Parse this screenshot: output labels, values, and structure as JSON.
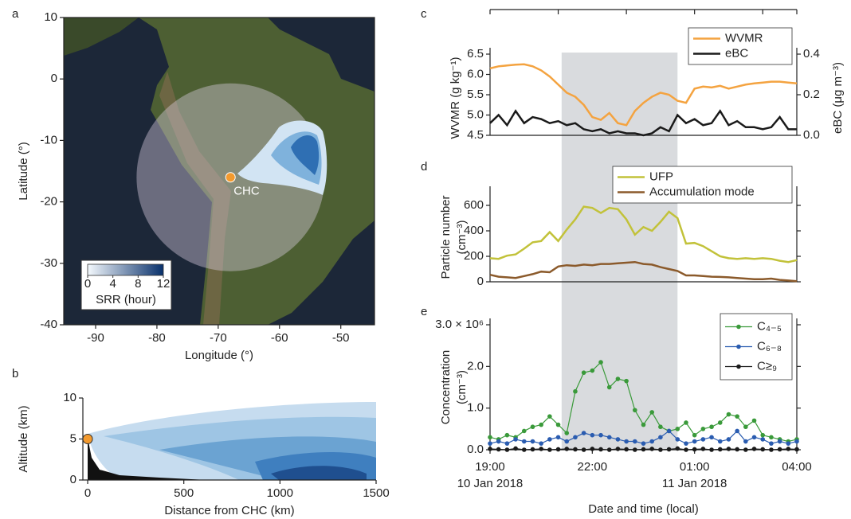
{
  "chart_data": [
    {
      "type": "map",
      "panel": "a",
      "xlabel": "Longitude (°)",
      "ylabel": "Latitude (°)",
      "xlim": [
        -95.2,
        -44.5
      ],
      "ylim": [
        -40,
        10
      ],
      "xticks": [
        -90,
        -80,
        -70,
        -60,
        -50
      ],
      "yticks": [
        10,
        0,
        -10,
        -20,
        -30,
        -40
      ],
      "site": {
        "name": "CHC",
        "x": -68,
        "y": -16,
        "color": "#f39a2e"
      },
      "colorbar": {
        "label": "SRR (hour)",
        "ticks": [
          0,
          4,
          8,
          12
        ],
        "lim": [
          0,
          12
        ],
        "colors": [
          "#f4f9fd",
          "#08306b"
        ]
      }
    },
    {
      "type": "contour",
      "panel": "b",
      "xlabel": "Distance from CHC (km)",
      "ylabel": "Altitude (km)",
      "xlim": [
        -25,
        1500
      ],
      "ylim": [
        0,
        10
      ],
      "xticks": [
        0,
        500,
        1000,
        1500
      ],
      "yticks": [
        0,
        5,
        10
      ],
      "site": {
        "x": 0,
        "y": 5,
        "color": "#f39a2e"
      }
    },
    {
      "type": "line",
      "panel": "c",
      "ylabel": "WVMR (g kg⁻¹)",
      "y2label": "eBC (μg m⁻³)",
      "xlim": [
        19,
        28
      ],
      "top_xticks": [
        19,
        21,
        23,
        25,
        27,
        28
      ],
      "ylim": [
        4.5,
        6.5
      ],
      "yticks": [
        4.5,
        {
          "value": 5,
          "label": "5.0"
        },
        5.5,
        {
          "value": 6,
          "label": "6.0"
        },
        6.5
      ],
      "y2lim": [
        0,
        0.4
      ],
      "y2ticks": [
        {
          "value": 0,
          "label": "0.0"
        },
        0.2,
        0.4
      ],
      "legend": "top-right",
      "x": [
        19,
        19.25,
        19.5,
        19.75,
        20,
        20.25,
        20.5,
        20.75,
        21,
        21.25,
        21.5,
        21.75,
        22,
        22.25,
        22.5,
        22.75,
        23,
        23.25,
        23.5,
        23.75,
        24,
        24.25,
        24.5,
        24.75,
        25,
        25.25,
        25.5,
        25.75,
        26,
        26.25,
        26.5,
        26.75,
        27,
        27.25,
        27.5,
        27.75,
        28
      ],
      "series": [
        {
          "name": "WVMR",
          "color": "#f4a340",
          "values": [
            6.15,
            6.2,
            6.22,
            6.24,
            6.25,
            6.2,
            6.1,
            5.95,
            5.75,
            5.55,
            5.45,
            5.25,
            4.95,
            4.88,
            5.05,
            4.8,
            4.75,
            5.1,
            5.3,
            5.45,
            5.55,
            5.5,
            5.35,
            5.3,
            5.65,
            5.7,
            5.68,
            5.72,
            5.65,
            5.7,
            5.75,
            5.78,
            5.8,
            5.82,
            5.82,
            5.8,
            5.78
          ]
        },
        {
          "name": "eBC",
          "color": "#1a1a1a",
          "axis": "y2",
          "values": [
            0.06,
            0.1,
            0.05,
            0.12,
            0.06,
            0.09,
            0.08,
            0.06,
            0.07,
            0.05,
            0.06,
            0.03,
            0.02,
            0.03,
            0.01,
            0.02,
            0.01,
            0.01,
            0,
            0.01,
            0.04,
            0.02,
            0.1,
            0.06,
            0.08,
            0.05,
            0.06,
            0.12,
            0.05,
            0.07,
            0.04,
            0.04,
            0.03,
            0.04,
            0.09,
            0.03,
            0.03
          ]
        }
      ]
    },
    {
      "type": "line",
      "panel": "d",
      "ylabel": [
        "Particle number",
        "(cm⁻³)"
      ],
      "xlim": [
        19,
        28
      ],
      "ylim": [
        0,
        700
      ],
      "yticks": [
        0,
        200,
        400,
        600
      ],
      "legend": "top-right",
      "x": [
        19,
        19.25,
        19.5,
        19.75,
        20,
        20.25,
        20.5,
        20.75,
        21,
        21.25,
        21.5,
        21.75,
        22,
        22.25,
        22.5,
        22.75,
        23,
        23.25,
        23.5,
        23.75,
        24,
        24.25,
        24.5,
        24.75,
        25,
        25.25,
        25.5,
        25.75,
        26,
        26.25,
        26.5,
        26.75,
        27,
        27.25,
        27.5,
        27.75,
        28
      ],
      "series": [
        {
          "name": "UFP",
          "color": "#c2c23a",
          "values": [
            185,
            180,
            205,
            215,
            260,
            310,
            320,
            390,
            320,
            410,
            490,
            590,
            580,
            540,
            580,
            570,
            490,
            370,
            430,
            400,
            470,
            550,
            500,
            300,
            305,
            280,
            240,
            200,
            185,
            180,
            185,
            180,
            185,
            180,
            165,
            155,
            170
          ]
        },
        {
          "name": "Accumulation mode",
          "color": "#8b5a2b",
          "values": [
            55,
            40,
            35,
            30,
            45,
            60,
            80,
            75,
            120,
            130,
            125,
            135,
            130,
            140,
            140,
            145,
            150,
            155,
            140,
            135,
            115,
            100,
            85,
            50,
            50,
            45,
            40,
            38,
            35,
            30,
            25,
            20,
            20,
            25,
            15,
            10,
            5
          ]
        }
      ]
    },
    {
      "type": "line",
      "panel": "e",
      "markers": true,
      "ylabel": [
        "Concentration",
        "(cm⁻³)"
      ],
      "xlabel": "Date and time (local)",
      "xlim": [
        19,
        28
      ],
      "xticks": [
        {
          "value": 19,
          "label": "19:00"
        },
        {
          "value": 22,
          "label": "22:00"
        },
        {
          "value": 25,
          "label": "01:00"
        },
        {
          "value": 28,
          "label": "04:00"
        }
      ],
      "date_labels": [
        {
          "value": 19,
          "label": "10 Jan 2018"
        },
        {
          "value": 25,
          "label": "11 Jan 2018"
        }
      ],
      "highlight_x": [
        21.1,
        24.5
      ],
      "ylim": [
        0,
        3000000
      ],
      "yticks": [
        {
          "value": 0,
          "label": "0.0"
        },
        {
          "value": 1000000,
          "label": "1.0"
        },
        {
          "value": 2000000,
          "label": "2.0"
        },
        {
          "value": 3000000,
          "label": "3.0 × 10⁶"
        }
      ],
      "legend": "top-right",
      "x": [
        19,
        19.25,
        19.5,
        19.75,
        20,
        20.25,
        20.5,
        20.75,
        21,
        21.25,
        21.5,
        21.75,
        22,
        22.25,
        22.5,
        22.75,
        23,
        23.25,
        23.5,
        23.75,
        24,
        24.25,
        24.5,
        24.75,
        25,
        25.25,
        25.5,
        25.75,
        26,
        26.25,
        26.5,
        26.75,
        27,
        27.25,
        27.5,
        27.75,
        28
      ],
      "series": [
        {
          "name": "C₄₋₅",
          "color": "#3a9a3a",
          "values": [
            300000,
            250000,
            350000,
            300000,
            450000,
            550000,
            600000,
            800000,
            600000,
            400000,
            1400000,
            1850000,
            1900000,
            2100000,
            1500000,
            1700000,
            1650000,
            950000,
            600000,
            900000,
            550000,
            450000,
            500000,
            650000,
            350000,
            500000,
            550000,
            650000,
            850000,
            800000,
            550000,
            700000,
            350000,
            300000,
            250000,
            200000,
            250000
          ]
        },
        {
          "name": "C₆₋₈",
          "color": "#2a5cb0",
          "values": [
            150000,
            200000,
            150000,
            250000,
            200000,
            200000,
            150000,
            250000,
            300000,
            200000,
            300000,
            400000,
            350000,
            350000,
            300000,
            250000,
            200000,
            200000,
            150000,
            200000,
            300000,
            450000,
            250000,
            150000,
            200000,
            250000,
            300000,
            200000,
            250000,
            450000,
            200000,
            300000,
            250000,
            150000,
            200000,
            150000,
            200000
          ]
        },
        {
          "name": "C≥₉",
          "color": "#1a1a1a",
          "values": [
            20000,
            10000,
            0,
            30000,
            0,
            10000,
            20000,
            0,
            10000,
            20000,
            10000,
            0,
            20000,
            10000,
            0,
            20000,
            10000,
            0,
            10000,
            20000,
            0,
            10000,
            30000,
            0,
            10000,
            20000,
            0,
            10000,
            20000,
            10000,
            0,
            20000,
            10000,
            0,
            10000,
            20000,
            10000
          ]
        }
      ]
    }
  ]
}
